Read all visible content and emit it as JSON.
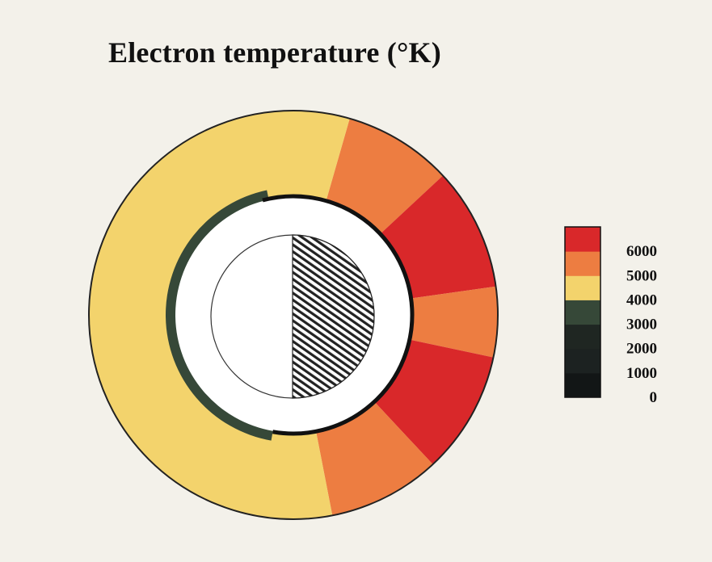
{
  "title": "Electron temperature (°K)",
  "legend": {
    "labels": [
      "6000",
      "5000",
      "4000",
      "3000",
      "2000",
      "1000",
      "0"
    ],
    "bins": [
      {
        "color": "#d9282a"
      },
      {
        "color": "#ed7d41"
      },
      {
        "color": "#f3d36c"
      },
      {
        "color": "#364838"
      },
      {
        "color": "#1f2622"
      },
      {
        "color": "#1c2221"
      },
      {
        "color": "#121616"
      }
    ]
  },
  "colors": {
    "background": "#f3f1ea",
    "level_6000_plus": "#d9282a",
    "level_5000_6000": "#ed7d41",
    "level_4000_5000": "#f3d36c",
    "level_3000_4000": "#364838",
    "inner_black": "#111111",
    "planet_day": "#ffffff",
    "planet_night_hatch": "#222222"
  },
  "ring_sectors": [
    {
      "from_deg": 286,
      "to_deg": 317,
      "level": "level_5000_6000"
    },
    {
      "from_deg": 317,
      "to_deg": 352,
      "level": "level_6000_plus"
    },
    {
      "from_deg": 352,
      "to_deg": 12,
      "level": "level_5000_6000"
    },
    {
      "from_deg": 12,
      "to_deg": 47,
      "level": "level_6000_plus"
    },
    {
      "from_deg": 47,
      "to_deg": 79,
      "level": "level_5000_6000"
    },
    {
      "from_deg": 79,
      "to_deg": 286,
      "level": "level_4000_5000"
    }
  ]
}
